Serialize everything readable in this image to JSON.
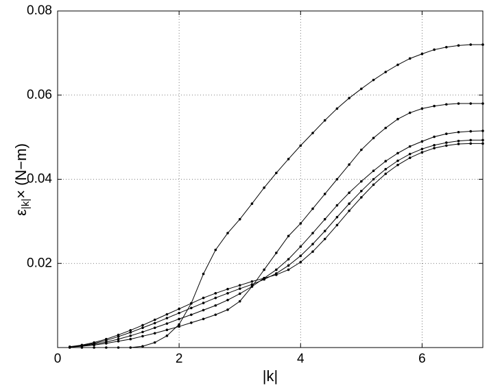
{
  "chart_data": {
    "type": "line",
    "xlabel": "|k|",
    "ylabel": {
      "base": "ε",
      "subscript": "|k|",
      "rest": "× (N−m)"
    },
    "x": [
      0.2,
      0.4,
      0.6,
      0.8,
      1.0,
      1.2,
      1.4,
      1.6,
      1.8,
      2.0,
      2.2,
      2.4,
      2.6,
      2.8,
      3.0,
      3.2,
      3.4,
      3.6,
      3.8,
      4.0,
      4.2,
      4.4,
      4.6,
      4.8,
      5.0,
      5.2,
      5.4,
      5.6,
      5.8,
      6.0,
      6.2,
      6.4,
      6.6,
      6.8,
      7.0
    ],
    "series": [
      {
        "color": "#000000",
        "values": [
          0,
          0,
          0,
          0,
          0,
          0,
          0.0003,
          0.0012,
          0.0028,
          0.0055,
          0.0105,
          0.0175,
          0.0232,
          0.0272,
          0.0305,
          0.0342,
          0.038,
          0.0415,
          0.0448,
          0.048,
          0.051,
          0.054,
          0.0568,
          0.0593,
          0.0615,
          0.0636,
          0.0655,
          0.0672,
          0.0687,
          0.0698,
          0.0708,
          0.0714,
          0.0718,
          0.072,
          0.072
        ]
      },
      {
        "color": "#000000",
        "values": [
          0.0001,
          0.0003,
          0.0006,
          0.001,
          0.0015,
          0.002,
          0.0027,
          0.0034,
          0.0042,
          0.005,
          0.0059,
          0.0068,
          0.0078,
          0.009,
          0.011,
          0.0145,
          0.0185,
          0.0225,
          0.0265,
          0.0295,
          0.033,
          0.0365,
          0.04,
          0.0435,
          0.047,
          0.0498,
          0.0522,
          0.0543,
          0.0558,
          0.0568,
          0.0574,
          0.0578,
          0.058,
          0.058,
          0.058
        ]
      },
      {
        "color": "#000000",
        "values": [
          0.0001,
          0.0004,
          0.0008,
          0.0013,
          0.002,
          0.0028,
          0.0037,
          0.0047,
          0.0057,
          0.0068,
          0.0078,
          0.0089,
          0.01,
          0.0113,
          0.0128,
          0.0145,
          0.0165,
          0.0185,
          0.021,
          0.024,
          0.0272,
          0.0305,
          0.0338,
          0.0368,
          0.0395,
          0.042,
          0.0443,
          0.0462,
          0.0478,
          0.049,
          0.0501,
          0.0508,
          0.0512,
          0.0514,
          0.0515
        ]
      },
      {
        "color": "#000000",
        "values": [
          0.0001,
          0.0005,
          0.001,
          0.0017,
          0.0026,
          0.0036,
          0.0047,
          0.0058,
          0.007,
          0.0082,
          0.0094,
          0.0106,
          0.0118,
          0.0129,
          0.014,
          0.015,
          0.0162,
          0.0176,
          0.0195,
          0.0218,
          0.0246,
          0.0277,
          0.031,
          0.0342,
          0.0372,
          0.04,
          0.0424,
          0.0444,
          0.046,
          0.0472,
          0.0481,
          0.0487,
          0.0491,
          0.0493,
          0.0493
        ]
      },
      {
        "color": "#000000",
        "values": [
          0.0002,
          0.0006,
          0.0012,
          0.002,
          0.003,
          0.0041,
          0.0053,
          0.0066,
          0.0079,
          0.0092,
          0.0105,
          0.0118,
          0.0129,
          0.0139,
          0.0148,
          0.0157,
          0.0165,
          0.0173,
          0.0185,
          0.0203,
          0.0228,
          0.0258,
          0.0291,
          0.0325,
          0.0357,
          0.0387,
          0.0413,
          0.0434,
          0.0451,
          0.0464,
          0.0474,
          0.048,
          0.0484,
          0.0485,
          0.0485
        ]
      }
    ],
    "xlim": [
      0,
      7
    ],
    "xticks": [
      0,
      2,
      4,
      6
    ],
    "ylim": [
      0,
      0.08
    ],
    "yticks": [
      0.02,
      0.04,
      0.06,
      0.08
    ],
    "grid": true
  }
}
